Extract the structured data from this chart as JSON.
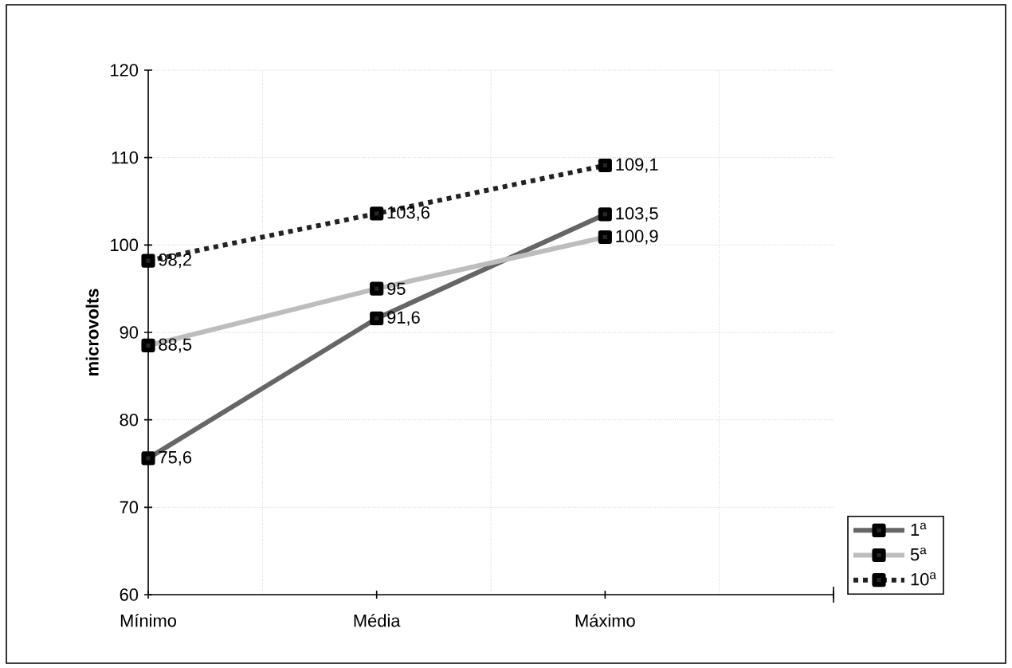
{
  "chart_data": {
    "type": "line",
    "ylabel": "microvolts",
    "categories": [
      "Mínimo",
      "Média",
      "Máximo",
      null
    ],
    "series": [
      {
        "name": "1$^{a}$",
        "color": "#666666",
        "values": [
          75.6,
          91.6,
          103.5,
          null
        ],
        "value_labels": [
          "75,6",
          "91,6",
          "103,5",
          null
        ]
      },
      {
        "name": "5$^{a}$",
        "color": "#bdbdbd",
        "values": [
          88.5,
          95,
          100.9,
          null
        ],
        "value_labels": [
          "88,5",
          "95",
          "100,9",
          null
        ]
      },
      {
        "name": "10$^{a}$",
        "color": "#222222",
        "values": [
          98.2,
          103.6,
          109.1,
          null
        ],
        "value_labels": [
          "98,2",
          "103,6",
          "109,1",
          null
        ],
        "line_style": "dashed"
      }
    ],
    "ylim": [
      60,
      120
    ],
    "yticks": [
      60,
      70,
      80,
      90,
      100,
      110,
      120
    ],
    "grid": true,
    "legend": "bottom right",
    "marker": "square"
  }
}
